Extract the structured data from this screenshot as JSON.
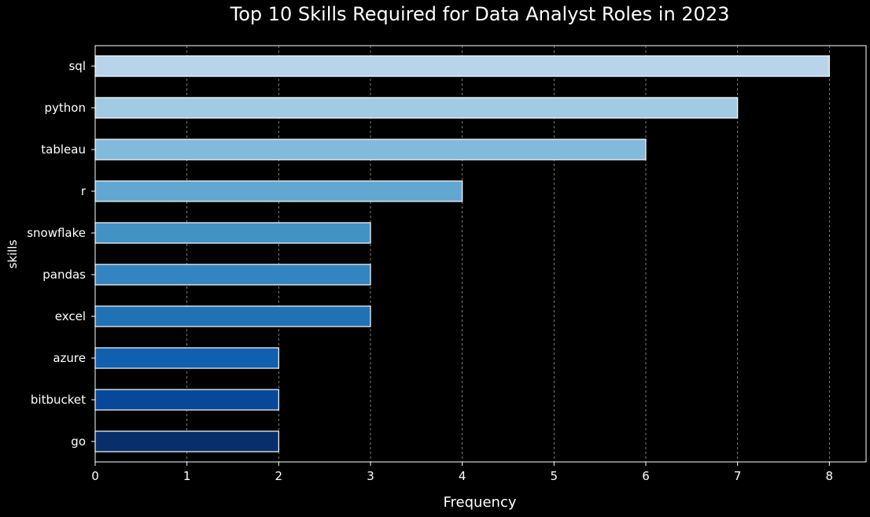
{
  "chart_data": {
    "type": "bar",
    "orientation": "horizontal",
    "title": "Top 10 Skills Required for Data Analyst Roles in 2023",
    "xlabel": "Frequency",
    "ylabel": "skills",
    "categories": [
      "sql",
      "python",
      "tableau",
      "r",
      "snowflake",
      "pandas",
      "excel",
      "azure",
      "bitbucket",
      "go"
    ],
    "values": [
      8,
      7,
      6,
      4,
      3,
      3,
      3,
      2,
      2,
      2
    ],
    "xlim": [
      0,
      8.4
    ],
    "xticks": [
      0,
      1,
      2,
      3,
      4,
      5,
      6,
      7,
      8
    ],
    "xtick_labels": [
      "0",
      "1",
      "2",
      "3",
      "4",
      "5",
      "6",
      "7",
      "8"
    ],
    "grid": "x",
    "background": "#000000",
    "bar_colors": [
      "#b7d4ea",
      "#a0cbe2",
      "#82badb",
      "#62a7d2",
      "#4292c6",
      "#3484bf",
      "#2171b5",
      "#1060ad",
      "#08489a",
      "#082f6b"
    ],
    "bar_edge_color": "#ffffff"
  }
}
